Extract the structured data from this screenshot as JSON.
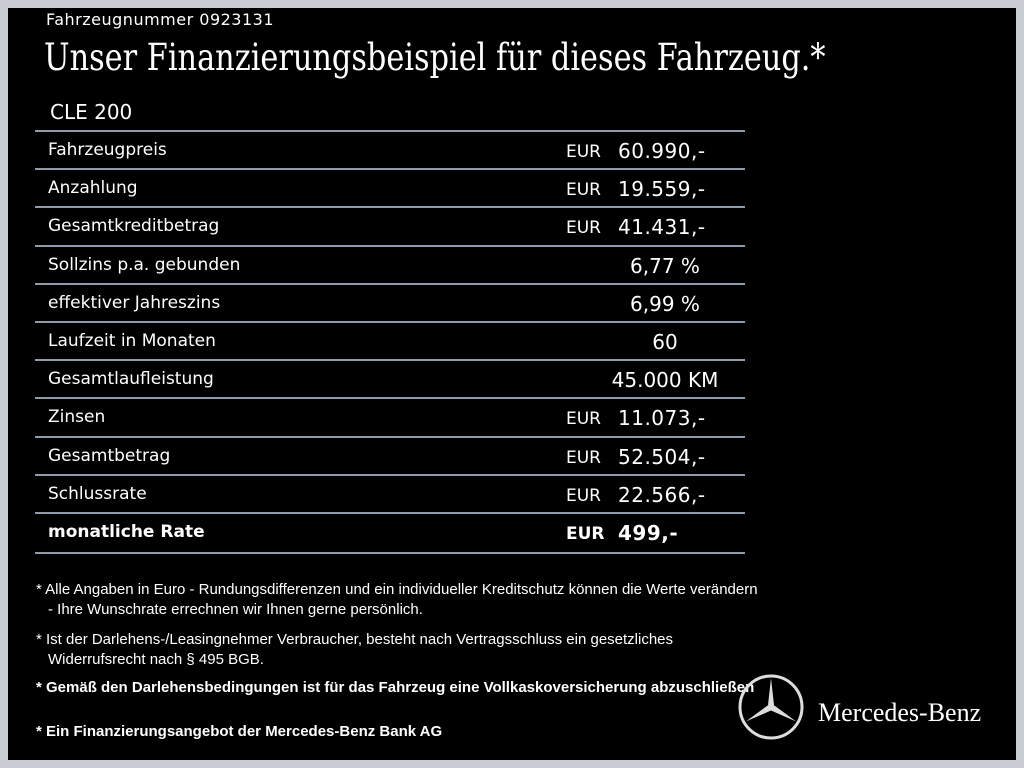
{
  "header": {
    "vehicle_number": "Fahrzeugnummer  0923131",
    "title": "Unser Finanzierungsbeispiel für dieses Fahrzeug.*",
    "model": "CLE 200"
  },
  "table": {
    "rows": [
      {
        "label": "Fahrzeugpreis",
        "currency": "EUR",
        "value": "60.990,-"
      },
      {
        "label": "Anzahlung",
        "currency": "EUR",
        "value": "19.559,-"
      },
      {
        "label": "Gesamtkreditbetrag",
        "currency": "EUR",
        "value": "41.431,-"
      },
      {
        "label": "Sollzins p.a. gebunden",
        "value": "6,77 %"
      },
      {
        "label": "effektiver Jahreszins",
        "value": "6,99 %"
      },
      {
        "label": "Laufzeit in Monaten",
        "value": "60"
      },
      {
        "label": "Gesamtlaufleistung",
        "value": "45.000 KM"
      },
      {
        "label": "Zinsen",
        "currency": "EUR",
        "value": "11.073,-"
      },
      {
        "label": "Gesamtbetrag",
        "currency": "EUR",
        "value": "52.504,-"
      },
      {
        "label": "Schlussrate",
        "currency": "EUR",
        "value": "22.566,-"
      },
      {
        "label": "monatliche Rate",
        "currency": "EUR",
        "value": "499,-"
      }
    ]
  },
  "footnotes": [
    "* Alle Angaben in Euro - Rundungsdifferenzen und ein individueller Kreditschutz können die Werte verändern - Ihre Wunschrate errechnen wir Ihnen gerne persönlich.",
    "* Ist der Darlehens-/Leasingnehmer Verbraucher, besteht nach Vertragsschluss ein gesetzliches Widerrufsrecht nach § 495 BGB.",
    "* Gemäß den Darlehensbedingungen ist für das Fahrzeug eine Vollkaskoversicherung abzuschließen",
    "* Ein Finanzierungsangebot der Mercedes-Benz Bank AG"
  ],
  "brand": "Mercedes-Benz"
}
